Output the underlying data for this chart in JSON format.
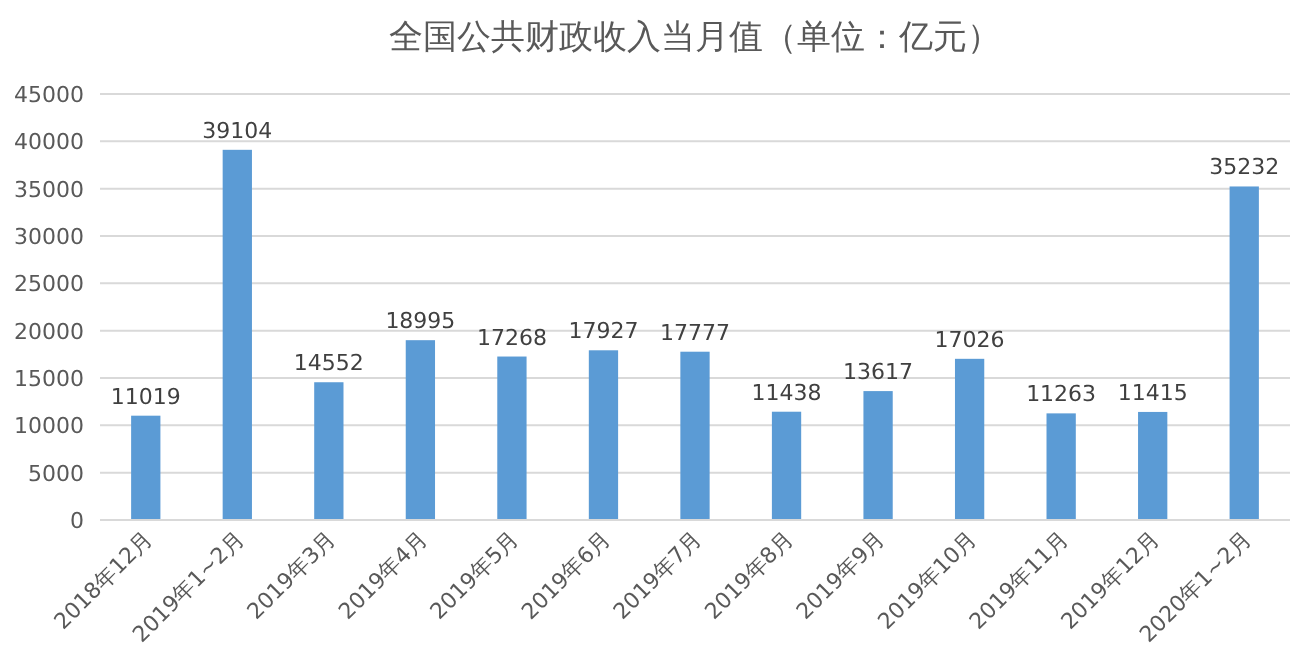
{
  "chart_data": {
    "type": "bar",
    "title": "全国公共财政收入当月值（单位：亿元）",
    "categories": [
      "2018年12月",
      "2019年1~2月",
      "2019年3月",
      "2019年4月",
      "2019年5月",
      "2019年6月",
      "2019年7月",
      "2019年8月",
      "2019年9月",
      "2019年10月",
      "2019年11月",
      "2019年12月",
      "2020年1~2月"
    ],
    "values": [
      11019,
      39104,
      14552,
      18995,
      17268,
      17927,
      17777,
      11438,
      13617,
      17026,
      11263,
      11415,
      35232
    ],
    "color": "#5b9bd5",
    "ylim": [
      0,
      45000
    ],
    "yticks": [
      0,
      5000,
      10000,
      15000,
      20000,
      25000,
      30000,
      35000,
      40000,
      45000
    ],
    "grid": "y",
    "data_labels": true
  }
}
